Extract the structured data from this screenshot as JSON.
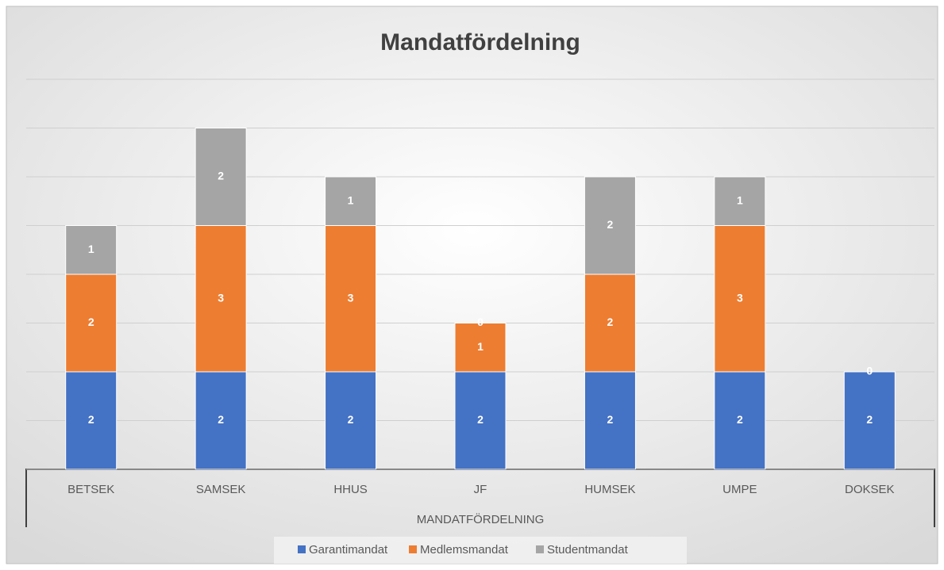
{
  "chart_data": {
    "type": "stacked_bar",
    "title": "Mandatfördelning",
    "xlabel": "MANDATFÖRDELNING",
    "categories": [
      "BETSEK",
      "SAMSEK",
      "HHUS",
      "JF",
      "HUMSEK",
      "UMPE",
      "DOKSEK"
    ],
    "series": [
      {
        "name": "Garantimandat",
        "color": "#4472c4",
        "values": [
          2,
          2,
          2,
          2,
          2,
          2,
          2
        ]
      },
      {
        "name": "Medlemsmandat",
        "color": "#ed7d31",
        "values": [
          2,
          3,
          3,
          1,
          2,
          3,
          0
        ]
      },
      {
        "name": "Studentmandat",
        "color": "#a5a5a5",
        "values": [
          1,
          2,
          1,
          0,
          2,
          1,
          0
        ]
      }
    ],
    "ylim": [
      0,
      8
    ],
    "yticks": [
      0,
      1,
      2,
      3,
      4,
      5,
      6,
      7,
      8
    ],
    "grid": true,
    "legend": "bottom"
  }
}
